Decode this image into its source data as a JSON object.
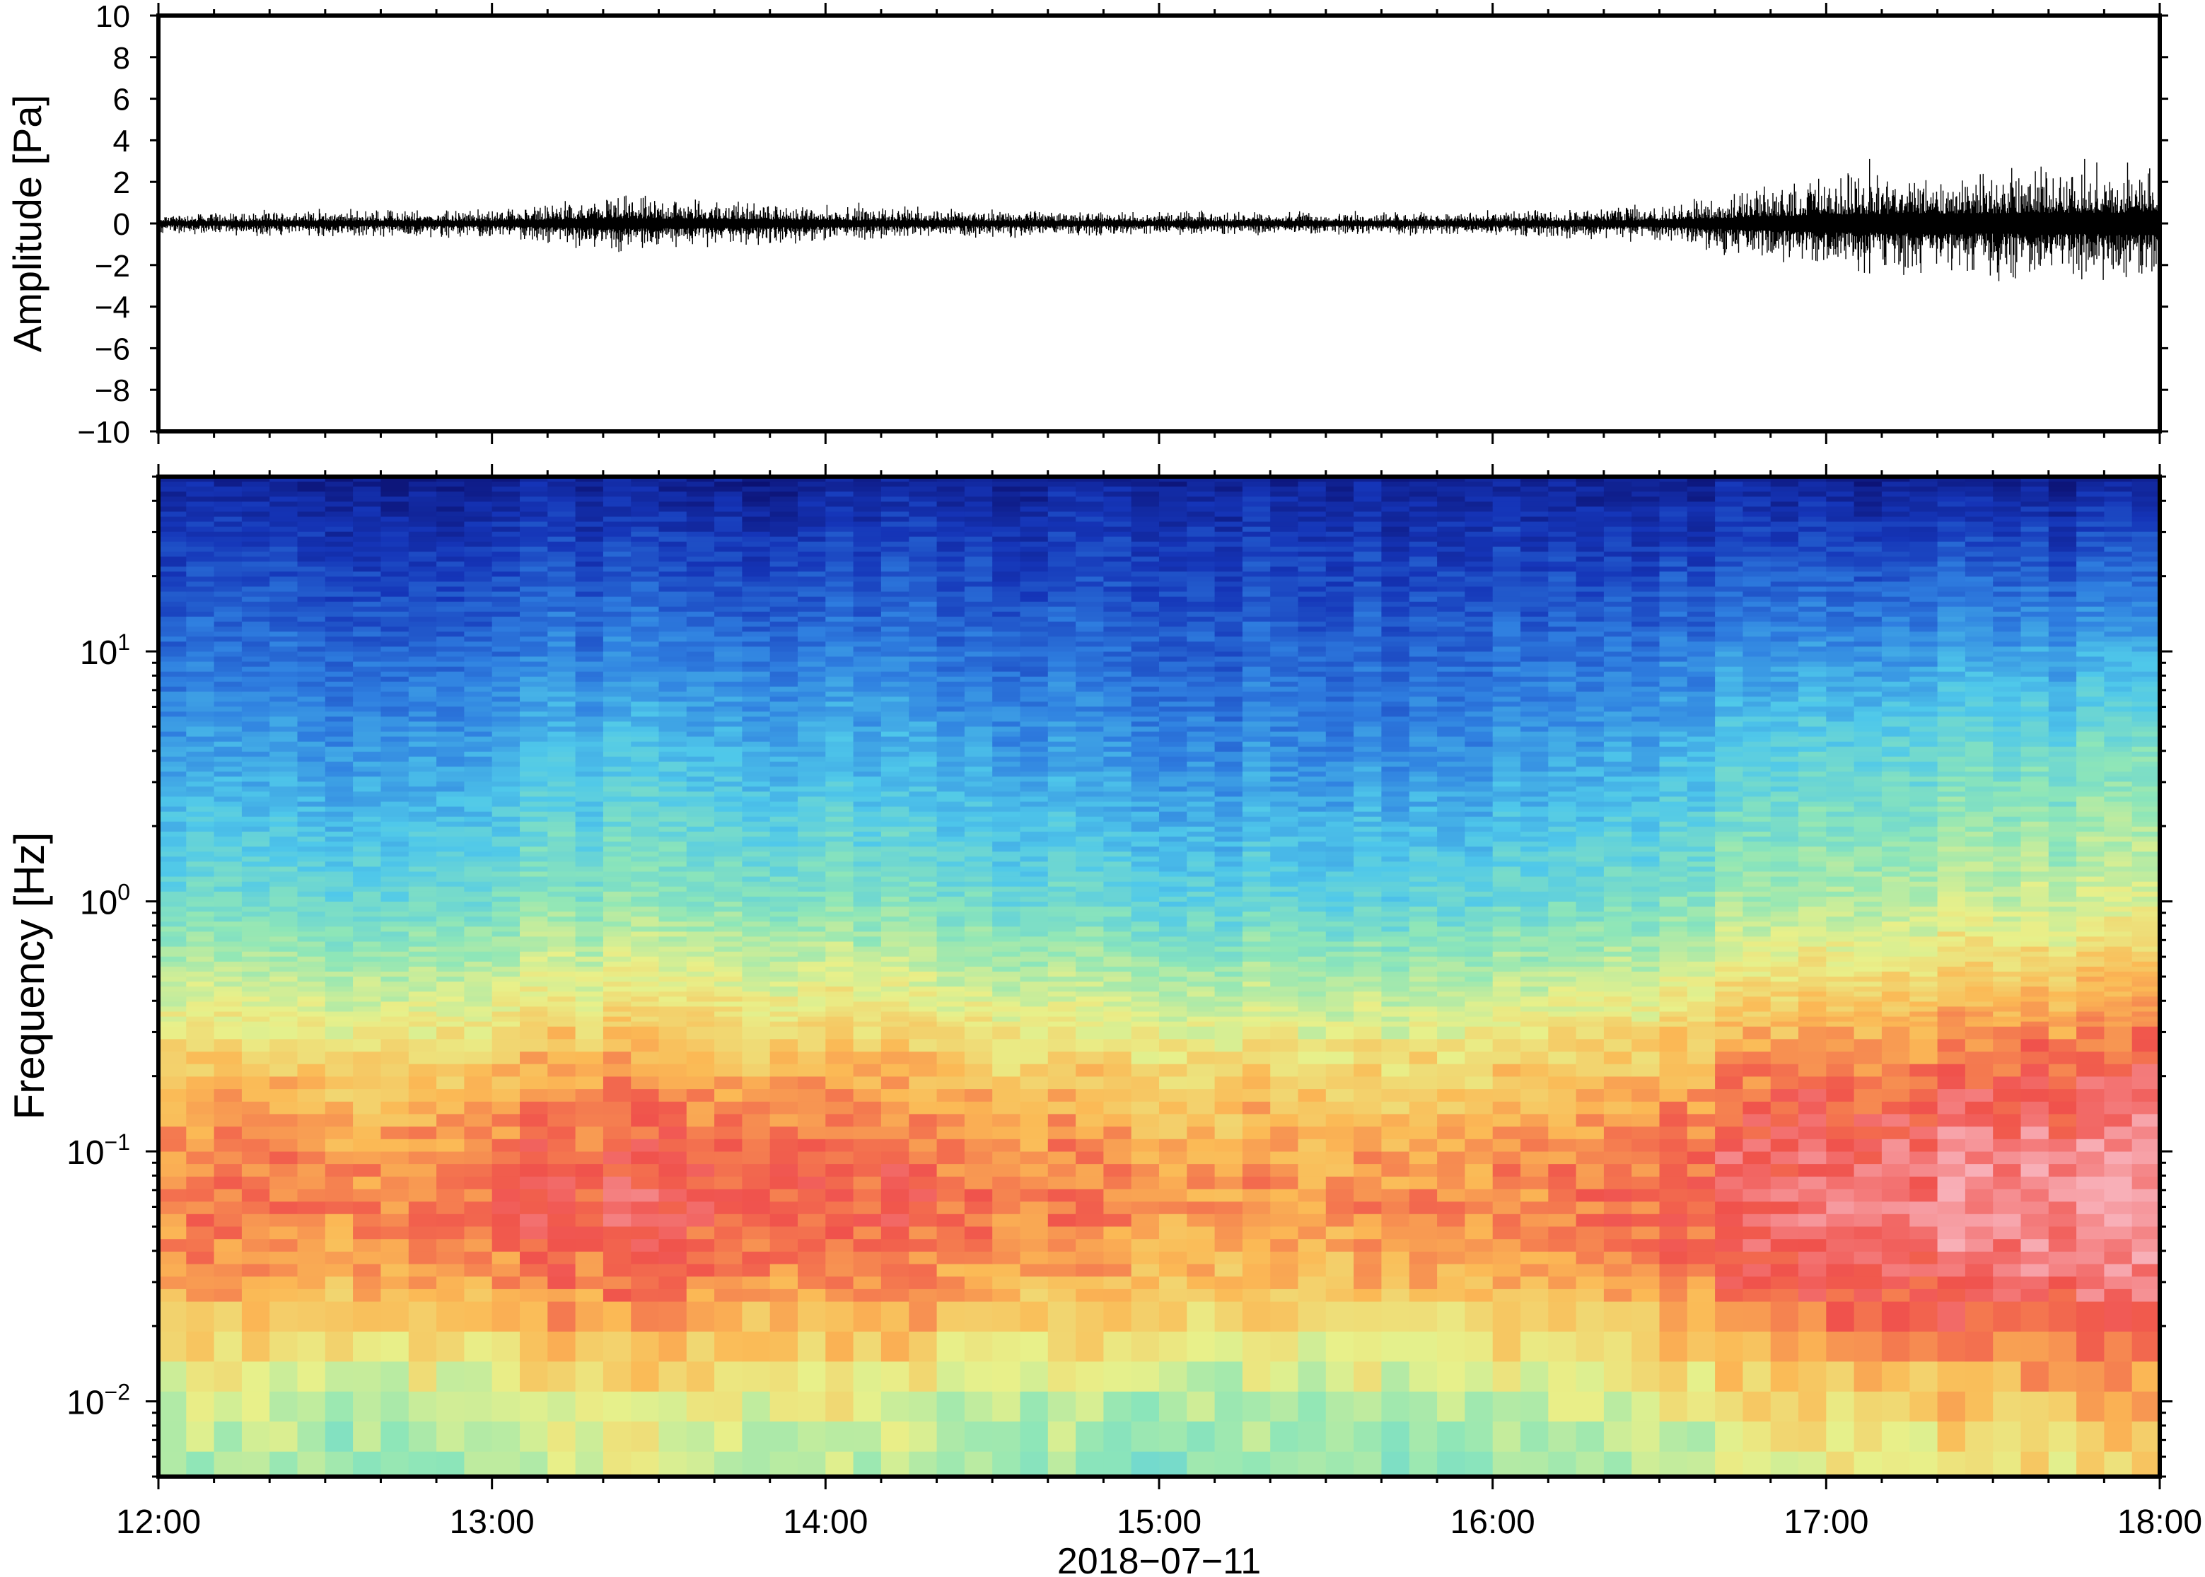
{
  "chart_data": [
    {
      "type": "line",
      "ylabel": "Amplitude [Pa]",
      "ylim": [
        -10,
        10
      ],
      "yticks": [
        "10",
        "8",
        "6",
        "4",
        "2",
        "0",
        "−2",
        "−4",
        "−6",
        "−8",
        "−10"
      ],
      "ytick_values": [
        10,
        8,
        6,
        4,
        2,
        0,
        -2,
        -4,
        -6,
        -8,
        -10
      ],
      "x_range": [
        "12:00",
        "18:00"
      ],
      "envelope": {
        "description_hours": [
          0,
          0.5,
          1.0,
          1.4,
          2.0,
          2.5,
          3.0,
          3.5,
          4.0,
          4.5,
          4.8,
          5.0,
          5.2,
          5.5,
          6.0
        ],
        "amplitude": [
          0.25,
          0.35,
          0.35,
          0.7,
          0.45,
          0.35,
          0.3,
          0.3,
          0.3,
          0.45,
          0.9,
          1.2,
          1.3,
          1.4,
          1.5
        ]
      },
      "peaks": [
        {
          "x_hour": 5.13,
          "y": 3.1
        },
        {
          "x_hour": 5.13,
          "y": -2.4
        },
        {
          "x_hour": 1.42,
          "y": 1.0
        },
        {
          "x_hour": 2.1,
          "y": 1.0
        },
        {
          "x_hour": 5.85,
          "y": 2.0
        },
        {
          "x_hour": 5.96,
          "y": -2.1
        }
      ]
    },
    {
      "type": "heatmap",
      "ylabel": "Frequency [Hz]",
      "yscale": "log",
      "ylim": [
        0.005,
        50
      ],
      "ytick_labels": [
        {
          "base": "10",
          "exp": "1",
          "value": 10
        },
        {
          "base": "10",
          "exp": "0",
          "value": 1
        },
        {
          "base": "10",
          "exp": "−1",
          "value": 0.1
        },
        {
          "base": "10",
          "exp": "−2",
          "value": 0.01
        }
      ],
      "xlabel": "2018−07−11",
      "xticks": [
        "12:00",
        "13:00",
        "14:00",
        "15:00",
        "16:00",
        "17:00",
        "18:00"
      ],
      "xtick_hours": [
        0,
        1,
        2,
        3,
        4,
        5,
        6
      ],
      "colormap": [
        "#0b0f6e",
        "#1535b8",
        "#2f7fe0",
        "#4fc8ea",
        "#8ee6b8",
        "#e8f08a",
        "#fbb955",
        "#f0524c",
        "#f8b0b8"
      ],
      "power_profile": {
        "log10_freq": [
          -2.3,
          -2.05,
          -1.8,
          -1.55,
          -1.25,
          -1.0,
          -0.7,
          -0.4,
          0.0,
          0.5,
          1.0,
          1.5,
          1.7
        ],
        "level": [
          0.52,
          0.56,
          0.66,
          0.76,
          0.82,
          0.8,
          0.72,
          0.6,
          0.44,
          0.32,
          0.22,
          0.12,
          0.06
        ]
      },
      "time_activity": {
        "hours": [
          0,
          0.5,
          1.0,
          1.5,
          2.0,
          2.5,
          3.0,
          3.5,
          4.0,
          4.5,
          5.0,
          5.5,
          6.0
        ],
        "boost": [
          0.0,
          0.0,
          0.02,
          0.05,
          0.03,
          0.0,
          -0.02,
          -0.02,
          -0.01,
          0.03,
          0.08,
          0.1,
          0.11
        ]
      }
    }
  ]
}
